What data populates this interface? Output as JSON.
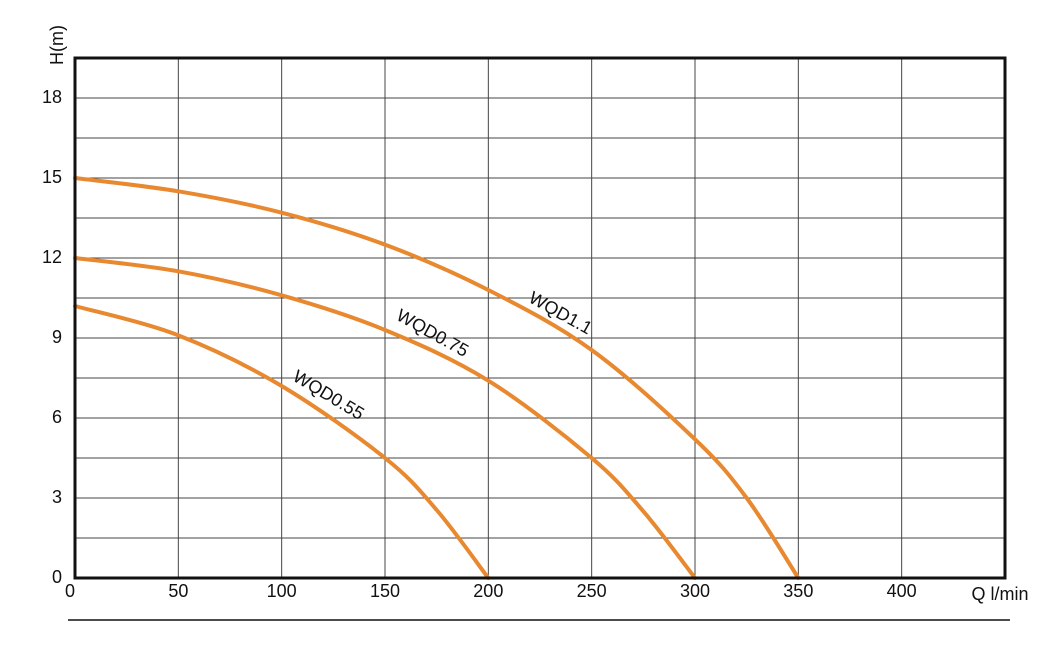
{
  "chart_data": {
    "type": "line",
    "y_label": "H(m)",
    "x_label": "Q l/min",
    "xlim": [
      0,
      450
    ],
    "ylim": [
      0,
      19.5
    ],
    "xticks": [
      0,
      50,
      100,
      150,
      200,
      250,
      300,
      350,
      400
    ],
    "yticks": [
      0,
      3,
      6,
      9,
      12,
      15,
      18
    ],
    "grid": true,
    "minor_grid": true,
    "series": [
      {
        "name": "WQD1.1",
        "color": "#e8882f",
        "x": [
          0,
          50,
          100,
          150,
          200,
          250,
          300,
          325,
          350
        ],
        "values": [
          15,
          14.5,
          13.7,
          12.5,
          10.8,
          8.55,
          5.2,
          3.0,
          0
        ]
      },
      {
        "name": "WQD0.75",
        "color": "#e8882f",
        "x": [
          0,
          50,
          100,
          150,
          200,
          250,
          275,
          300
        ],
        "values": [
          12,
          11.5,
          10.6,
          9.3,
          7.4,
          4.5,
          2.5,
          0
        ]
      },
      {
        "name": "WQD0.55",
        "color": "#e8882f",
        "x": [
          0,
          50,
          100,
          150,
          175,
          200
        ],
        "values": [
          10.2,
          9.1,
          7.2,
          4.5,
          2.55,
          0
        ]
      }
    ]
  }
}
